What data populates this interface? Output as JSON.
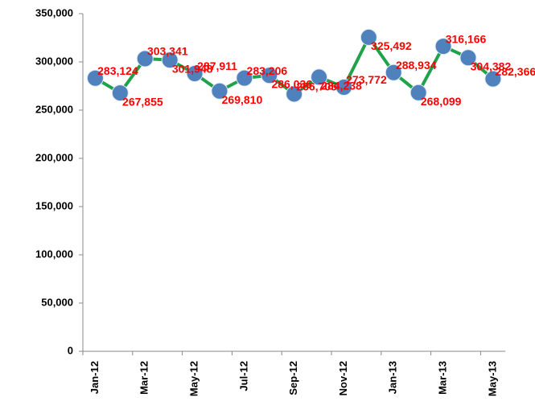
{
  "chart_data": {
    "type": "line",
    "categories": [
      "Jan-12",
      null,
      "Mar-12",
      null,
      "May-12",
      null,
      "Jul-12",
      null,
      "Sep-12",
      null,
      "Nov-12",
      null,
      "Jan-13",
      null,
      "Mar-13",
      null,
      "May-13"
    ],
    "series": [
      {
        "color": "#1fa34a",
        "marker_color": "#4f81bd",
        "values": [
          283124,
          267855,
          303341,
          301948,
          287911,
          269810,
          283206,
          286036,
          266705,
          284238,
          273772,
          325492,
          288934,
          268099,
          316166,
          304382,
          282366
        ],
        "value_labels": [
          "283,124",
          "267,855",
          "303,341",
          "301,948",
          "287,911",
          "269,810",
          "283,206",
          "286,036",
          "266,705",
          "284,238",
          "273,772",
          "325,492",
          "288,934",
          "268,099",
          "316,166",
          "304,382",
          "282,366"
        ],
        "label_color": "#ff0000"
      }
    ],
    "ylim": [
      0,
      350000
    ],
    "yticks": [
      0,
      {
        "value": 50000,
        "label": "50,000"
      },
      {
        "value": 100000,
        "label": "100,000"
      },
      {
        "value": 150000,
        "label": "150,000"
      },
      {
        "value": 200000,
        "label": "200,000"
      },
      {
        "value": 250000,
        "label": "250,000"
      },
      {
        "value": 300000,
        "label": "300,000"
      },
      {
        "value": 350000,
        "label": "350,000"
      }
    ],
    "grid": false
  }
}
